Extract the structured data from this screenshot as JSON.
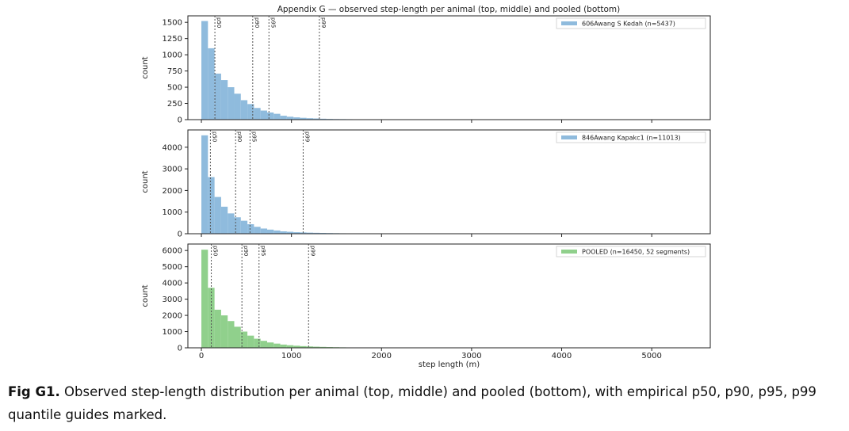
{
  "figure_title": "Appendix G — observed step-length per animal (top, middle) and pooled (bottom)",
  "caption": {
    "label": "Fig G1.",
    "text": " Observed step-length distribution per animal (top, middle) and pooled (bottom), with empirical p50, p90, p95, p99 quantile guides marked."
  },
  "colors": {
    "blue_bars": "#8fbbdd",
    "green_bars": "#90d08c",
    "quantile_line": "#555555"
  },
  "chart_data": [
    {
      "type": "bar",
      "subtype": "histogram",
      "legend": "606Awang S Kedah  (n=5437)",
      "legend_position": "upper right",
      "color": "#8fbbdd",
      "ylabel": "count",
      "xlabel": "",
      "xlim": [
        -150,
        5650
      ],
      "ylim": [
        0,
        1600
      ],
      "yticks": [
        0,
        250,
        500,
        750,
        1000,
        1250,
        1500
      ],
      "bin_width": 73,
      "bins_start": 0,
      "values": [
        1520,
        1100,
        710,
        610,
        500,
        400,
        300,
        240,
        180,
        140,
        110,
        90,
        60,
        45,
        35,
        28,
        22,
        18,
        14,
        11,
        9,
        8,
        7,
        6,
        5,
        4,
        4,
        3,
        3,
        2,
        2,
        2,
        1,
        1,
        1,
        1,
        1,
        1
      ],
      "quantiles": [
        {
          "label": "p50",
          "x": 150
        },
        {
          "label": "p90",
          "x": 570
        },
        {
          "label": "p95",
          "x": 750
        },
        {
          "label": "p99",
          "x": 1310
        }
      ]
    },
    {
      "type": "bar",
      "subtype": "histogram",
      "legend": "846Awang Kapakc1  (n=11013)",
      "legend_position": "upper right",
      "color": "#8fbbdd",
      "ylabel": "count",
      "xlabel": "",
      "xlim": [
        -150,
        5650
      ],
      "ylim": [
        0,
        4800
      ],
      "yticks": [
        0,
        1000,
        2000,
        3000,
        4000
      ],
      "bin_width": 73,
      "bins_start": 0,
      "values": [
        4550,
        2620,
        1700,
        1250,
        940,
        760,
        600,
        440,
        320,
        240,
        190,
        150,
        110,
        90,
        70,
        60,
        50,
        42,
        36,
        30,
        25,
        20,
        18,
        15,
        12,
        10,
        8,
        7,
        6,
        5,
        4,
        4,
        3,
        3,
        2,
        2,
        2,
        1,
        1,
        1
      ],
      "quantiles": [
        {
          "label": "p50",
          "x": 100
        },
        {
          "label": "p90",
          "x": 380
        },
        {
          "label": "p95",
          "x": 540
        },
        {
          "label": "p99",
          "x": 1130
        }
      ]
    },
    {
      "type": "bar",
      "subtype": "histogram",
      "legend": "POOLED  (n=16450, 52 segments)",
      "legend_position": "upper right",
      "color": "#90d08c",
      "ylabel": "count",
      "xlabel": "step length (m)",
      "xlim": [
        -150,
        5650
      ],
      "xticks": [
        0,
        1000,
        2000,
        3000,
        4000,
        5000
      ],
      "ylim": [
        0,
        6400
      ],
      "yticks": [
        0,
        1000,
        2000,
        3000,
        4000,
        5000,
        6000
      ],
      "bin_width": 73,
      "bins_start": 0,
      "values": [
        6050,
        3700,
        2350,
        2000,
        1650,
        1300,
        1000,
        750,
        560,
        430,
        330,
        260,
        200,
        160,
        130,
        105,
        85,
        70,
        58,
        47,
        38,
        30,
        25,
        20,
        16,
        13,
        10,
        8,
        7,
        6,
        5,
        4,
        3,
        3,
        2,
        2,
        1,
        1,
        1,
        1
      ],
      "quantiles": [
        {
          "label": "p50",
          "x": 110
        },
        {
          "label": "p90",
          "x": 450
        },
        {
          "label": "p95",
          "x": 640
        },
        {
          "label": "p99",
          "x": 1190
        }
      ]
    }
  ]
}
